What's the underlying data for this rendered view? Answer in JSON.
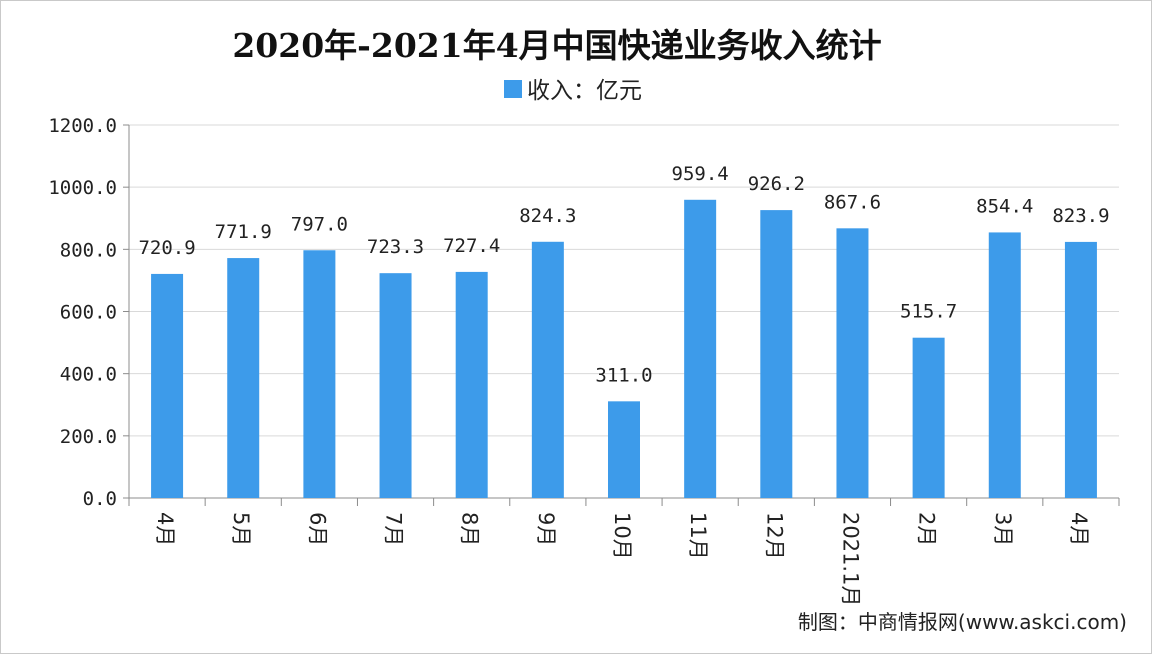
{
  "chart_data": {
    "type": "bar",
    "title": "2020年-2021年4月中国快递业务收入统计",
    "categories": [
      "4月",
      "5月",
      "6月",
      "7月",
      "8月",
      "9月",
      "10月",
      "11月",
      "12月",
      "2021.1月",
      "2月",
      "3月",
      "4月"
    ],
    "series": [
      {
        "name": "收入：亿元",
        "values": [
          720.9,
          771.9,
          797.0,
          723.3,
          727.4,
          824.3,
          311.0,
          959.4,
          926.2,
          867.6,
          515.7,
          854.4,
          823.9
        ],
        "labels": [
          "720.9",
          "771.9",
          "797.0",
          "723.3",
          "727.4",
          "824.3",
          "311.0",
          "959.4",
          "926.2",
          "867.6",
          "515.7",
          "854.4",
          "823.9"
        ]
      }
    ],
    "ylim": [
      0,
      1200
    ],
    "yticks": [
      0,
      200,
      400,
      600,
      800,
      1000,
      1200
    ],
    "ytick_labels": [
      "0.0",
      "200.0",
      "400.0",
      "600.0",
      "800.0",
      "1000.0",
      "1200.0"
    ],
    "xlabel": "",
    "ylabel": "",
    "legend_position": "top-center",
    "grid": true,
    "bar_color": "#3d9bea"
  },
  "source": "制图：中商情报网(www.askci.com)"
}
